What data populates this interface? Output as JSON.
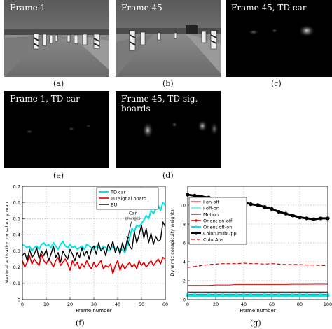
{
  "panels": {
    "a": {
      "title": "Frame 1",
      "caption": "(a)"
    },
    "b": {
      "title": "Frame 45",
      "caption": "(b)"
    },
    "c": {
      "title": "Frame 45, TD car",
      "caption": "(c)"
    },
    "e": {
      "title": "Frame 1, TD car",
      "caption": "(e)"
    },
    "d": {
      "title": "Frame 45, TD sig. boards",
      "caption": "(d)"
    },
    "f": {
      "caption": "(f)"
    },
    "g": {
      "caption": "(g)"
    }
  },
  "chart_data": [
    {
      "id": "f",
      "type": "line",
      "xlabel": "Frame number",
      "ylabel": "Maximal activation on saliency map",
      "xlim": [
        0,
        60
      ],
      "ylim": [
        0,
        0.7
      ],
      "xticks": [
        "0",
        "10",
        "20",
        "30",
        "40",
        "50",
        "60"
      ],
      "yticks": [
        "0",
        "0.1",
        "0.2",
        "0.3",
        "0.4",
        "0.5",
        "0.6",
        "0.7"
      ],
      "grid": true,
      "legend": "top-right",
      "annotation": {
        "lines": [
          "Car",
          "emerges"
        ],
        "x": 44,
        "y": 0.36
      },
      "x": [
        0,
        1,
        2,
        3,
        4,
        5,
        6,
        7,
        8,
        9,
        10,
        11,
        12,
        13,
        14,
        15,
        16,
        17,
        18,
        19,
        20,
        21,
        22,
        23,
        24,
        25,
        26,
        27,
        28,
        29,
        30,
        31,
        32,
        33,
        34,
        35,
        36,
        37,
        38,
        39,
        40,
        41,
        42,
        43,
        44,
        45,
        46,
        47,
        48,
        49,
        50,
        51,
        52,
        53,
        54,
        55,
        56,
        57,
        58,
        59,
        60
      ],
      "series": [
        {
          "name": "TD car",
          "color": "#00e5e5",
          "width": 2,
          "values": [
            0.34,
            0.33,
            0.32,
            0.33,
            0.3,
            0.32,
            0.33,
            0.31,
            0.34,
            0.35,
            0.33,
            0.34,
            0.32,
            0.35,
            0.33,
            0.31,
            0.34,
            0.36,
            0.33,
            0.32,
            0.34,
            0.32,
            0.33,
            0.31,
            0.32,
            0.33,
            0.31,
            0.34,
            0.33,
            0.32,
            0.31,
            0.33,
            0.32,
            0.31,
            0.33,
            0.32,
            0.3,
            0.31,
            0.33,
            0.31,
            0.32,
            0.3,
            0.31,
            0.29,
            0.33,
            0.38,
            0.44,
            0.42,
            0.46,
            0.45,
            0.47,
            0.49,
            0.52,
            0.5,
            0.55,
            0.53,
            0.56,
            0.58,
            0.55,
            0.6,
            0.58
          ]
        },
        {
          "name": "TD signal board",
          "color": "#e00000",
          "width": 1.6,
          "values": [
            0.24,
            0.2,
            0.23,
            0.27,
            0.22,
            0.25,
            0.23,
            0.21,
            0.28,
            0.24,
            0.22,
            0.25,
            0.23,
            0.2,
            0.24,
            0.26,
            0.21,
            0.23,
            0.25,
            0.22,
            0.18,
            0.24,
            0.21,
            0.23,
            0.19,
            0.22,
            0.2,
            0.24,
            0.21,
            0.19,
            0.23,
            0.2,
            0.22,
            0.24,
            0.19,
            0.21,
            0.2,
            0.22,
            0.16,
            0.21,
            0.24,
            0.18,
            0.22,
            0.19,
            0.21,
            0.23,
            0.2,
            0.22,
            0.19,
            0.24,
            0.21,
            0.23,
            0.2,
            0.22,
            0.24,
            0.21,
            0.23,
            0.25,
            0.22,
            0.26,
            0.25
          ]
        },
        {
          "name": "BU",
          "color": "#000000",
          "width": 1.4,
          "values": [
            0.27,
            0.29,
            0.24,
            0.31,
            0.26,
            0.28,
            0.32,
            0.25,
            0.3,
            0.27,
            0.31,
            0.24,
            0.28,
            0.33,
            0.26,
            0.29,
            0.23,
            0.3,
            0.27,
            0.25,
            0.31,
            0.28,
            0.24,
            0.29,
            0.26,
            0.32,
            0.27,
            0.3,
            0.25,
            0.31,
            0.33,
            0.28,
            0.35,
            0.3,
            0.32,
            0.27,
            0.34,
            0.31,
            0.36,
            0.29,
            0.33,
            0.28,
            0.35,
            0.3,
            0.37,
            0.33,
            0.31,
            0.42,
            0.35,
            0.4,
            0.46,
            0.38,
            0.44,
            0.35,
            0.41,
            0.34,
            0.39,
            0.36,
            0.37,
            0.48,
            0.45
          ]
        }
      ]
    },
    {
      "id": "g",
      "type": "line",
      "xlabel": "Frame number",
      "ylabel": "Dynamic conspicuity weights",
      "xlim": [
        0,
        100
      ],
      "ylim": [
        0,
        12
      ],
      "xticks": [
        "0",
        "20",
        "40",
        "60",
        "80",
        "100"
      ],
      "yticks": [
        "0",
        "2",
        "4",
        "6",
        "8",
        "10"
      ],
      "grid": true,
      "legend": "left",
      "x": [
        0,
        5,
        10,
        15,
        20,
        25,
        30,
        35,
        40,
        45,
        50,
        55,
        60,
        65,
        70,
        75,
        80,
        85,
        90,
        95,
        100
      ],
      "series": [
        {
          "name": "I on-off",
          "color": "#e00000",
          "dash": "",
          "width": 1,
          "marker": "",
          "values": [
            1.5,
            1.5,
            1.5,
            1.5,
            1.55,
            1.55,
            1.55,
            1.6,
            1.6,
            1.6,
            1.6,
            1.6,
            1.6,
            1.6,
            1.6,
            1.62,
            1.62,
            1.62,
            1.63,
            1.63,
            1.63
          ]
        },
        {
          "name": "I off-on",
          "color": "#00e5e5",
          "dash": "",
          "width": 1,
          "marker": "",
          "values": [
            0.3,
            0.3,
            0.3,
            0.3,
            0.3,
            0.3,
            0.3,
            0.3,
            0.3,
            0.3,
            0.3,
            0.3,
            0.3,
            0.3,
            0.3,
            0.3,
            0.3,
            0.3,
            0.3,
            0.3,
            0.3
          ]
        },
        {
          "name": "Motion",
          "color": "#000000",
          "dash": "",
          "width": 1,
          "marker": "",
          "values": [
            0.8,
            0.8,
            0.8,
            0.8,
            0.8,
            0.8,
            0.8,
            0.8,
            0.8,
            0.8,
            0.8,
            0.8,
            0.8,
            0.8,
            0.8,
            0.8,
            0.8,
            0.8,
            0.8,
            0.8,
            0.8
          ]
        },
        {
          "name": "Orient on-off",
          "color": "#e00000",
          "dash": "",
          "width": 1.5,
          "marker": "dot",
          "values": [
            0.55,
            0.55,
            0.55,
            0.55,
            0.55,
            0.55,
            0.55,
            0.55,
            0.55,
            0.55,
            0.55,
            0.55,
            0.55,
            0.55,
            0.55,
            0.55,
            0.55,
            0.55,
            0.55,
            0.55,
            0.55
          ]
        },
        {
          "name": "Orient off-on",
          "color": "#00e5e5",
          "dash": "",
          "width": 3,
          "marker": "dot",
          "values": [
            0.45,
            0.45,
            0.45,
            0.45,
            0.45,
            0.45,
            0.45,
            0.45,
            0.45,
            0.45,
            0.45,
            0.45,
            0.45,
            0.45,
            0.45,
            0.45,
            0.45,
            0.45,
            0.45,
            0.45,
            0.45
          ]
        },
        {
          "name": "ColorDoubOpp",
          "color": "#000000",
          "dash": "",
          "width": 3,
          "marker": "dot",
          "values": [
            11.1,
            11.0,
            10.9,
            10.8,
            10.7,
            10.6,
            10.5,
            10.3,
            10.3,
            10.1,
            10.0,
            9.8,
            9.6,
            9.3,
            9.1,
            8.9,
            8.7,
            8.6,
            8.5,
            8.6,
            8.6
          ]
        },
        {
          "name": "ColorAbs",
          "color": "#e00000",
          "dash": "5,3",
          "width": 1.2,
          "marker": "",
          "values": [
            3.4,
            3.5,
            3.6,
            3.7,
            3.75,
            3.8,
            3.8,
            3.8,
            3.85,
            3.8,
            3.8,
            3.75,
            3.8,
            3.75,
            3.7,
            3.7,
            3.7,
            3.65,
            3.65,
            3.6,
            3.6
          ]
        }
      ]
    }
  ]
}
